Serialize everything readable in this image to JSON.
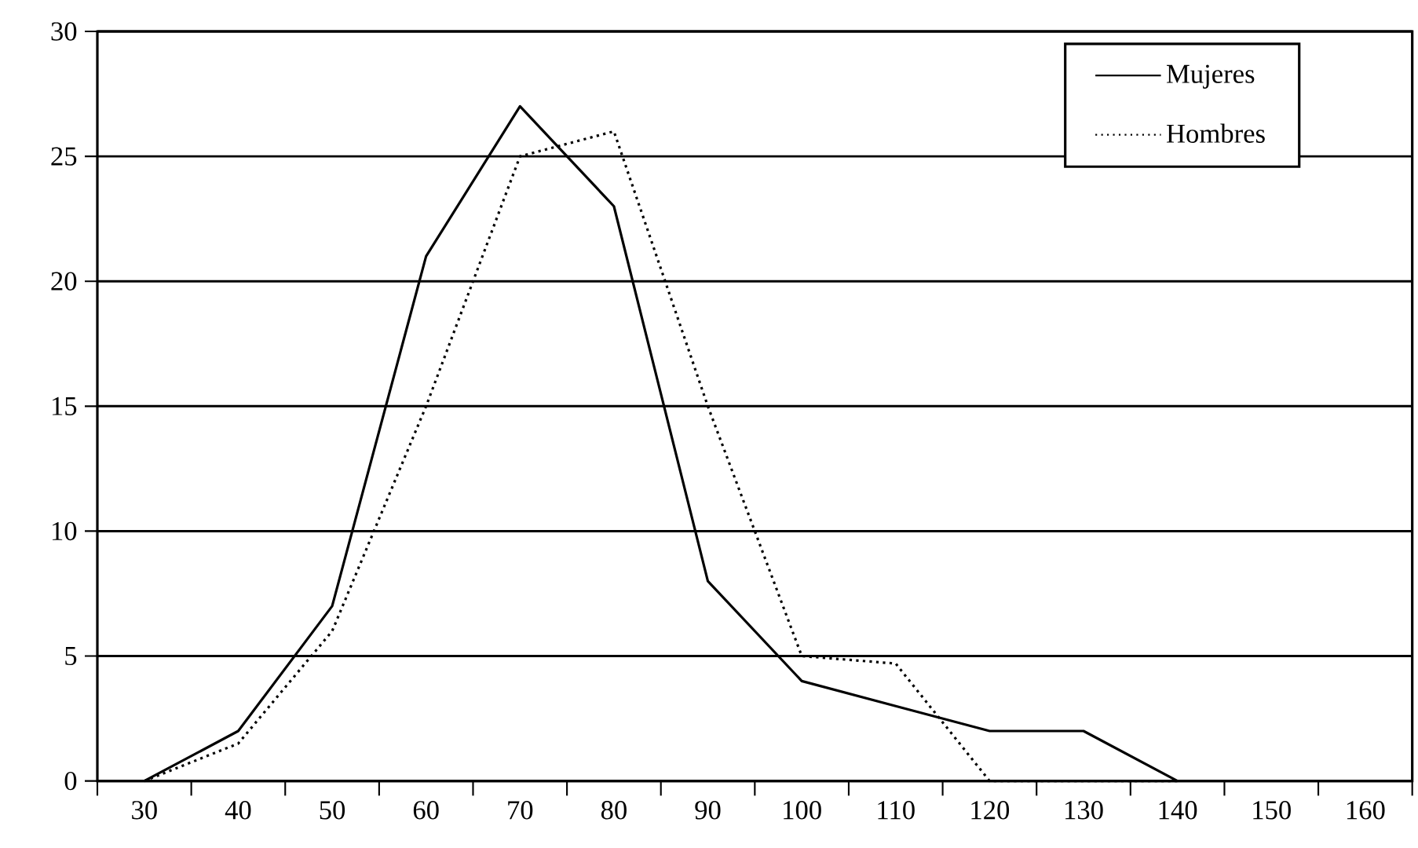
{
  "chart_data": {
    "type": "line",
    "x": [
      30,
      40,
      50,
      60,
      70,
      80,
      90,
      100,
      110,
      120,
      130,
      140
    ],
    "series": [
      {
        "name": "Mujeres",
        "color": "#000000",
        "line_style": "solid",
        "values": [
          0,
          2,
          7,
          21,
          27,
          23,
          8,
          4,
          3,
          2,
          2,
          0
        ]
      },
      {
        "name": "Hombres",
        "color": "#000000",
        "line_style": "dotted",
        "values": [
          0,
          1.5,
          6,
          15,
          25,
          26,
          15,
          5,
          4.7,
          0,
          0,
          0
        ]
      }
    ],
    "xlim": [
      25,
      165
    ],
    "xticks": [
      {
        "value": 25,
        "label": null
      },
      30,
      {
        "value": 35,
        "label": null
      },
      40,
      {
        "value": 45,
        "label": null
      },
      50,
      {
        "value": 55,
        "label": null
      },
      60,
      {
        "value": 65,
        "label": null
      },
      70,
      {
        "value": 75,
        "label": null
      },
      80,
      {
        "value": 85,
        "label": null
      },
      90,
      {
        "value": 95,
        "label": null
      },
      100,
      {
        "value": 105,
        "label": null
      },
      110,
      {
        "value": 115,
        "label": null
      },
      120,
      {
        "value": 125,
        "label": null
      },
      130,
      {
        "value": 135,
        "label": null
      },
      140,
      {
        "value": 145,
        "label": null
      },
      150,
      {
        "value": 155,
        "label": null
      },
      160,
      {
        "value": 165,
        "label": null
      }
    ],
    "ylim": [
      0,
      30
    ],
    "yticks": [
      0,
      5,
      10,
      15,
      20,
      25,
      30
    ],
    "grid": "y",
    "legend": "top right"
  }
}
